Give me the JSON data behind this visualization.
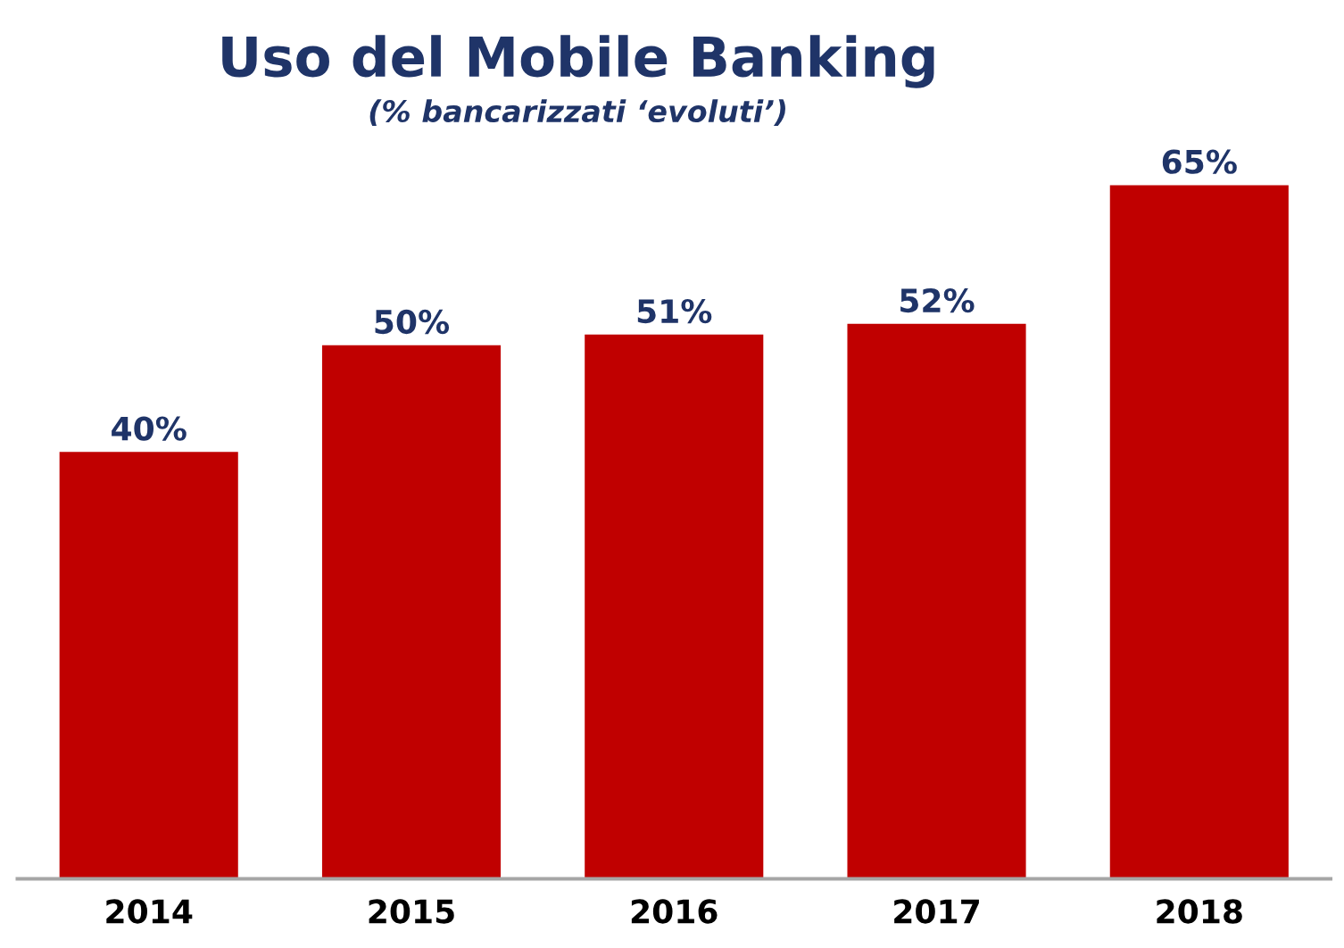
{
  "chart_data": {
    "type": "bar",
    "title": "Uso del Mobile Banking",
    "subtitle": "(% bancarizzati ‘evoluti’)",
    "categories": [
      "2014",
      "2015",
      "2016",
      "2017",
      "2018"
    ],
    "values": [
      40,
      50,
      51,
      52,
      65
    ],
    "value_labels": [
      "40%",
      "50%",
      "51%",
      "52%",
      "65%"
    ],
    "color": "#c00000",
    "grid": false,
    "legend": false
  }
}
